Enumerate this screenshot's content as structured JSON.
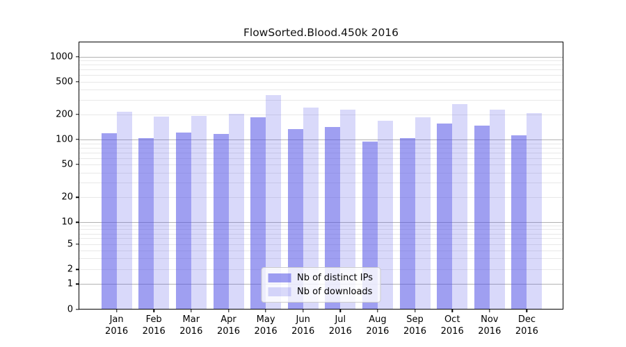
{
  "title": "FlowSorted.Blood.450k 2016",
  "chart_data": {
    "type": "bar",
    "title": "FlowSorted.Blood.450k 2016",
    "categories": [
      "Jan",
      "Feb",
      "Mar",
      "Apr",
      "May",
      "Jun",
      "Jul",
      "Aug",
      "Sep",
      "Oct",
      "Nov",
      "Dec"
    ],
    "x_sublabel": "2016",
    "series": [
      {
        "name": "Nb of distinct IPs",
        "color": "#5050e6",
        "opacity": 0.55,
        "values": [
          114,
          100,
          117,
          113,
          180,
          128,
          137,
          91,
          101,
          149,
          141,
          109
        ]
      },
      {
        "name": "Nb of downloads",
        "color": "#5050e6",
        "opacity": 0.22,
        "values": [
          208,
          181,
          186,
          198,
          330,
          232,
          221,
          163,
          178,
          258,
          221,
          201
        ]
      }
    ],
    "yscale": "log",
    "y_ticks": [
      1000,
      500,
      200,
      100,
      50,
      20,
      10,
      5,
      2,
      1,
      0
    ],
    "ylim": [
      0,
      1500
    ],
    "grid": "horizontal major+minor",
    "legend_position": "lower center",
    "major_grid_color": "#b2b2b2",
    "minor_grid_color": "#e8e8e8"
  }
}
